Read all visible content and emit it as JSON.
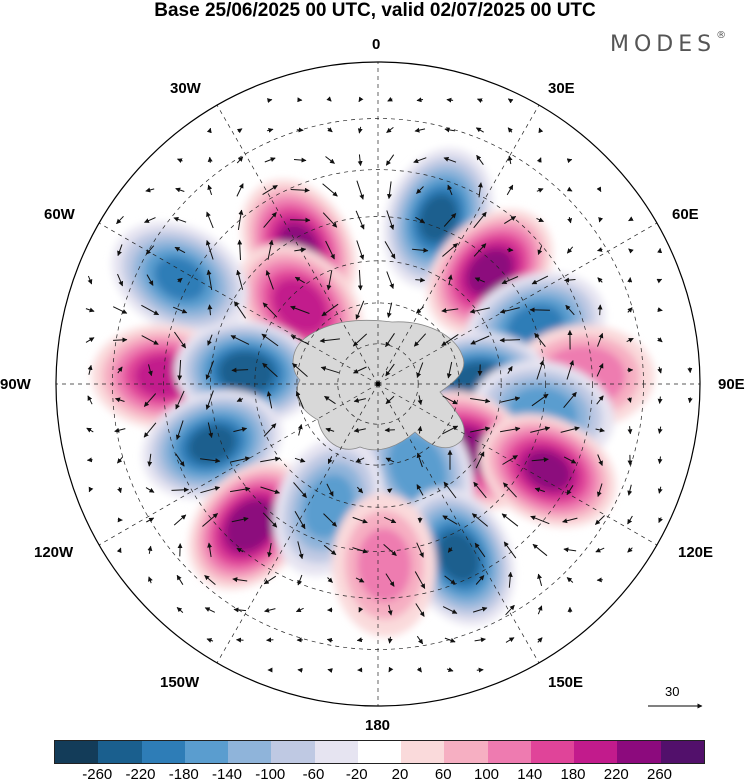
{
  "title": "Base 25/06/2025 00 UTC, valid 02/07/2025 00 UTC",
  "logo": "MODES",
  "logo_mark": "®",
  "map": {
    "projection": "south polar stereographic",
    "longitude_labels": {
      "top": "0",
      "top_right": "30E",
      "right_upper": "60E",
      "right": "90E",
      "right_lower": "120E",
      "bottom_right": "150E",
      "bottom": "180",
      "bottom_left": "150W",
      "left_lower": "120W",
      "left": "90W",
      "left_upper": "60W",
      "top_left": "30W"
    },
    "anomaly_centers": [
      {
        "lon": -30,
        "lat": -52,
        "value": 230,
        "sign": "positive"
      },
      {
        "lon": -45,
        "lat": -63,
        "value": 210,
        "sign": "positive"
      },
      {
        "lon": 20,
        "lat": -48,
        "value": -230,
        "sign": "negative"
      },
      {
        "lon": 45,
        "lat": -52,
        "value": 240,
        "sign": "positive"
      },
      {
        "lon": -62,
        "lat": -38,
        "value": -190,
        "sign": "negative"
      },
      {
        "lon": 70,
        "lat": -50,
        "value": -200,
        "sign": "negative"
      },
      {
        "lon": 88,
        "lat": -42,
        "value": 140,
        "sign": "positive"
      },
      {
        "lon": -88,
        "lat": -40,
        "value": 200,
        "sign": "positive"
      },
      {
        "lon": -85,
        "lat": -58,
        "value": -250,
        "sign": "negative"
      },
      {
        "lon": -110,
        "lat": -48,
        "value": -230,
        "sign": "negative"
      },
      {
        "lon": 90,
        "lat": -65,
        "value": -260,
        "sign": "negative"
      },
      {
        "lon": 100,
        "lat": -50,
        "value": -170,
        "sign": "negative"
      },
      {
        "lon": 125,
        "lat": -62,
        "value": 240,
        "sign": "positive"
      },
      {
        "lon": 117,
        "lat": -45,
        "value": 230,
        "sign": "positive"
      },
      {
        "lon": -138,
        "lat": -45,
        "value": 260,
        "sign": "positive"
      },
      {
        "lon": 155,
        "lat": -67,
        "value": -180,
        "sign": "negative"
      },
      {
        "lon": 155,
        "lat": -45,
        "value": -240,
        "sign": "negative"
      },
      {
        "lon": -158,
        "lat": -58,
        "value": -160,
        "sign": "negative"
      },
      {
        "lon": 178,
        "lat": -47,
        "value": 110,
        "sign": "positive"
      }
    ]
  },
  "colorbar": {
    "ticks": [
      "-260",
      "-220",
      "-180",
      "-140",
      "-100",
      "-60",
      "-20",
      "20",
      "60",
      "100",
      "140",
      "180",
      "220",
      "260"
    ],
    "colors": [
      "#133c59",
      "#1a5f8e",
      "#2e7db7",
      "#5a9dcf",
      "#8fb4da",
      "#bfc9e3",
      "#e6e4f1",
      "#ffffff",
      "#fadadb",
      "#f6afc2",
      "#ee7bb0",
      "#e04499",
      "#c21b8c",
      "#8c0a7d",
      "#52106b"
    ]
  },
  "reference_vector": "30",
  "colors": {
    "land": "#cfcfcf",
    "coast": "#777777",
    "arrows": "#111111",
    "grid": "#222222"
  }
}
